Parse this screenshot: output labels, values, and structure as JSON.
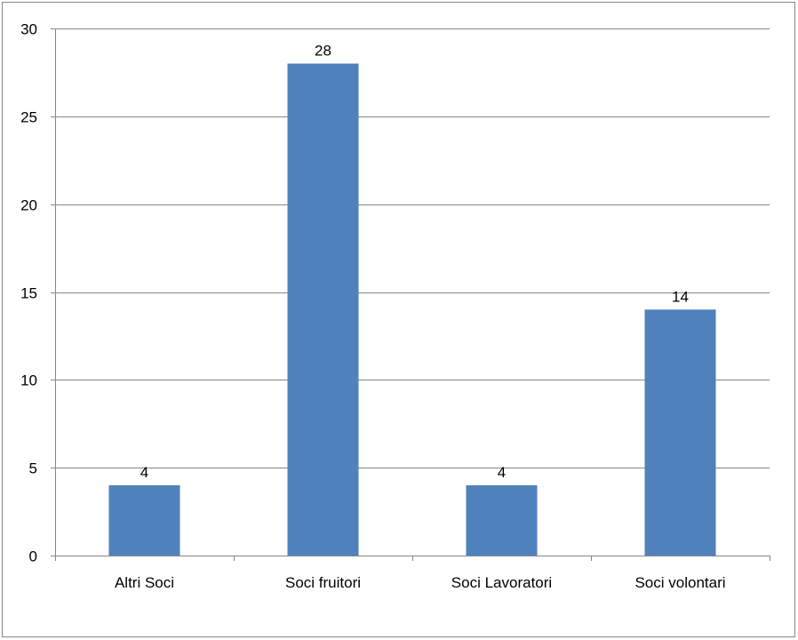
{
  "chart_data": {
    "type": "bar",
    "categories": [
      "Altri Soci",
      "Soci fruitori",
      "Soci Lavoratori",
      "Soci volontari"
    ],
    "values": [
      4,
      28,
      4,
      14
    ],
    "data_labels": [
      "4",
      "28",
      "4",
      "14"
    ],
    "ylim": [
      0,
      30
    ],
    "yticks": [
      0,
      5,
      10,
      15,
      20,
      25,
      30
    ],
    "ytick_labels": [
      "0",
      "5",
      "10",
      "15",
      "20",
      "25",
      "30"
    ],
    "grid": true,
    "legend": false,
    "colors": {
      "bar": "#4F81BD",
      "grid": "#868686",
      "axis": "#868686",
      "text": "#000000",
      "frame": "#868686"
    }
  }
}
